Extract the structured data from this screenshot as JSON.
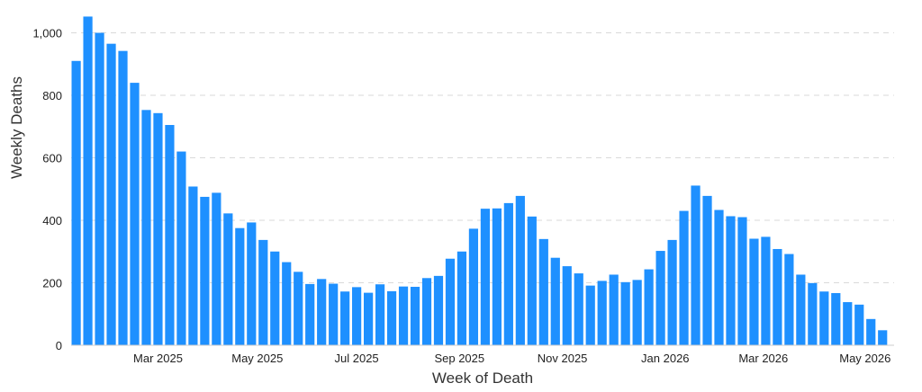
{
  "chart_data": {
    "type": "bar",
    "title": "",
    "xlabel": "Week of Death",
    "ylabel": "Weekly Deaths",
    "ylim": [
      0,
      1050
    ],
    "yticks": [
      0,
      200,
      400,
      600,
      800,
      1000
    ],
    "ytick_labels": [
      "0",
      "200",
      "400",
      "600",
      "800",
      "1,000"
    ],
    "xticks": [
      {
        "label": "Mar 2025",
        "week_index": 7
      },
      {
        "label": "May 2025",
        "week_index": 15.5
      },
      {
        "label": "Jul 2025",
        "week_index": 24
      },
      {
        "label": "Sep 2025",
        "week_index": 32.8
      },
      {
        "label": "Nov 2025",
        "week_index": 41.6
      },
      {
        "label": "Jan 2026",
        "week_index": 50.4
      },
      {
        "label": "Mar 2026",
        "week_index": 58.8
      },
      {
        "label": "May 2026",
        "week_index": 67.5
      }
    ],
    "grid": true,
    "bar_color": "#1e90ff",
    "values": [
      910,
      1052,
      1000,
      965,
      942,
      840,
      753,
      743,
      705,
      620,
      508,
      475,
      488,
      422,
      375,
      393,
      337,
      300,
      266,
      235,
      196,
      212,
      197,
      172,
      186,
      168,
      195,
      173,
      188,
      187,
      215,
      222,
      277,
      300,
      373,
      437,
      438,
      455,
      478,
      412,
      340,
      280,
      253,
      230,
      191,
      206,
      226,
      202,
      209,
      243,
      302,
      337,
      430,
      511,
      478,
      433,
      413,
      410,
      341,
      347,
      308,
      292,
      226,
      199,
      172,
      167,
      138,
      130,
      84,
      48
    ]
  }
}
